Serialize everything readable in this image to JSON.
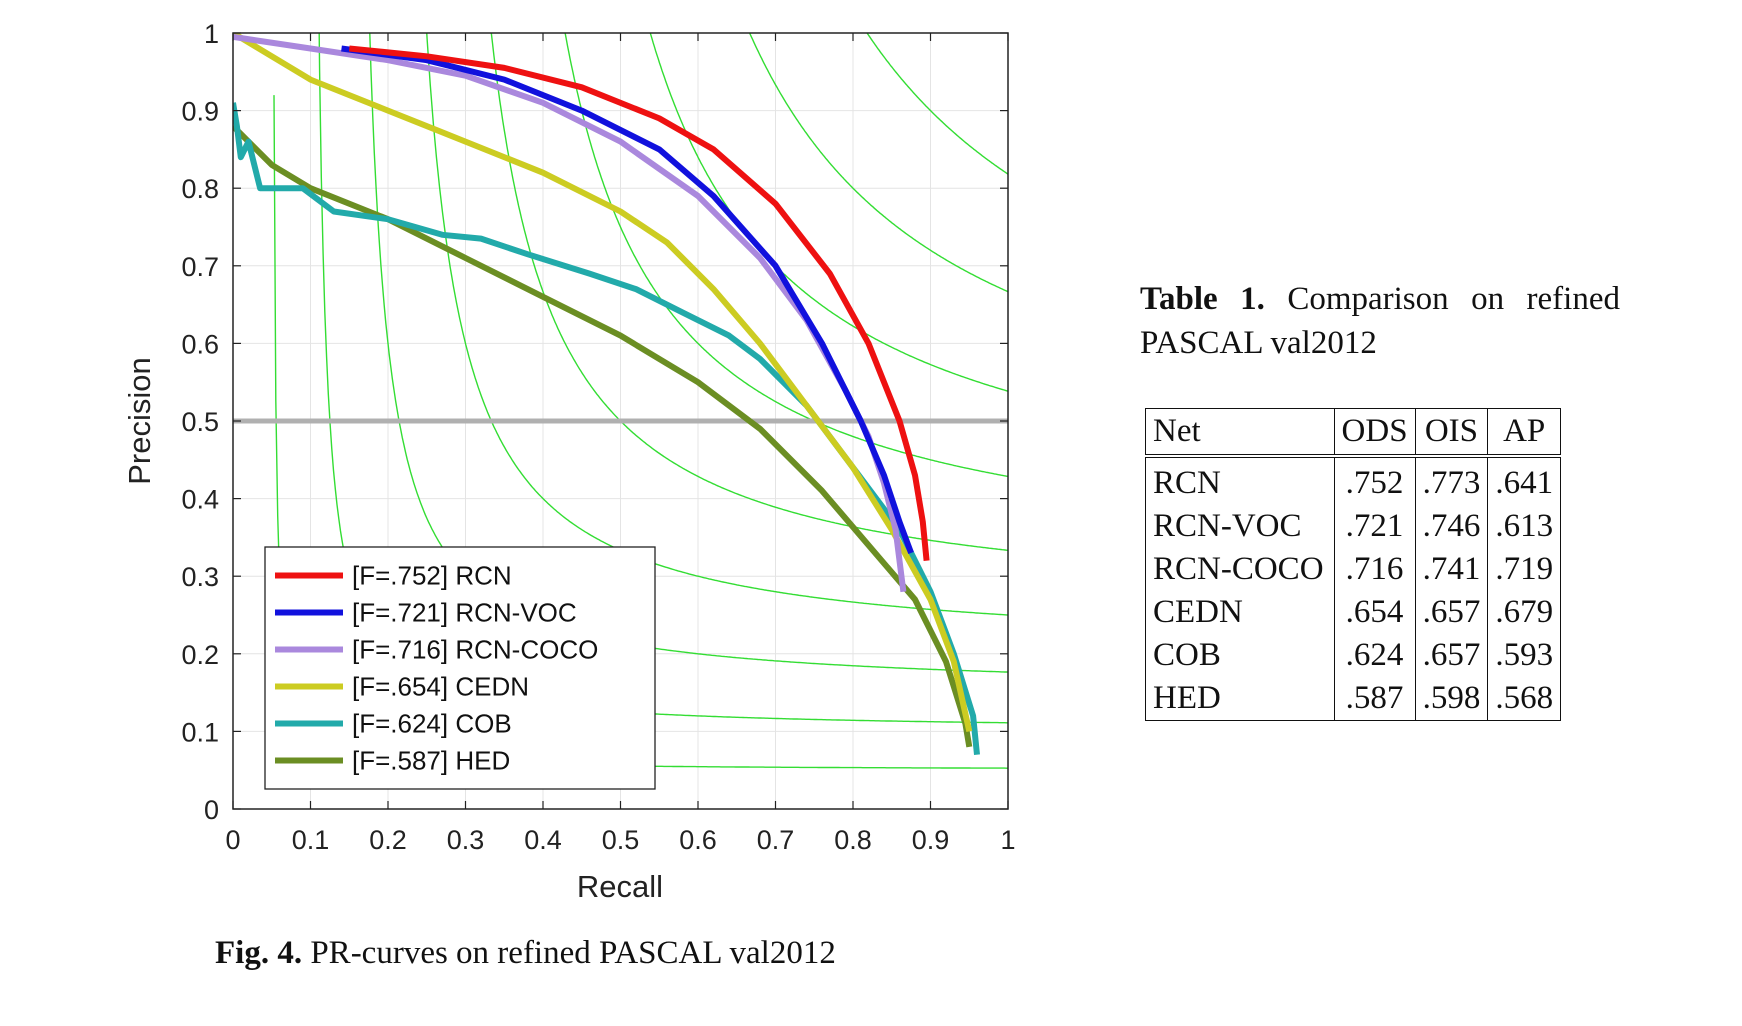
{
  "chart_data": {
    "type": "line",
    "title": "",
    "xlabel": "Recall",
    "ylabel": "Precision",
    "xlim": [
      0,
      1
    ],
    "ylim": [
      0,
      1
    ],
    "grid": true,
    "legend_position": "bottom-left",
    "x_ticks": [
      "0",
      "0.1",
      "0.2",
      "0.3",
      "0.4",
      "0.5",
      "0.6",
      "0.7",
      "0.8",
      "0.9",
      "1"
    ],
    "y_ticks": [
      "0",
      "0.1",
      "0.2",
      "0.3",
      "0.4",
      "0.5",
      "0.6",
      "0.7",
      "0.8",
      "0.9",
      "1"
    ],
    "reference_line": {
      "y": 0.5,
      "color": "#b0b0b0"
    },
    "iso_f_values": [
      0.1,
      0.2,
      0.3,
      0.4,
      0.5,
      0.6,
      0.7,
      0.8,
      0.9
    ],
    "iso_f_color": "#33dd33",
    "series": [
      {
        "name": "[F=.752] RCN",
        "color": "#ee1111",
        "x": [
          0.15,
          0.25,
          0.35,
          0.45,
          0.55,
          0.62,
          0.7,
          0.77,
          0.82,
          0.86,
          0.88,
          0.89,
          0.895
        ],
        "y": [
          0.98,
          0.97,
          0.955,
          0.93,
          0.89,
          0.85,
          0.78,
          0.69,
          0.6,
          0.5,
          0.43,
          0.37,
          0.32
        ]
      },
      {
        "name": "[F=.721] RCN-VOC",
        "color": "#1111dd",
        "x": [
          0.14,
          0.25,
          0.35,
          0.45,
          0.55,
          0.62,
          0.7,
          0.76,
          0.81,
          0.84,
          0.86,
          0.875
        ],
        "y": [
          0.98,
          0.965,
          0.94,
          0.9,
          0.85,
          0.79,
          0.7,
          0.6,
          0.5,
          0.43,
          0.37,
          0.33
        ]
      },
      {
        "name": "[F=.716] RCN-COCO",
        "color": "#aa88dd",
        "x": [
          0.0,
          0.1,
          0.2,
          0.3,
          0.4,
          0.5,
          0.6,
          0.68,
          0.74,
          0.79,
          0.82,
          0.84,
          0.855,
          0.865
        ],
        "y": [
          0.995,
          0.98,
          0.965,
          0.945,
          0.91,
          0.86,
          0.79,
          0.71,
          0.63,
          0.54,
          0.48,
          0.42,
          0.36,
          0.28
        ]
      },
      {
        "name": "[F=.654] CEDN",
        "color": "#cccc22",
        "x": [
          0.0,
          0.1,
          0.2,
          0.3,
          0.4,
          0.5,
          0.56,
          0.62,
          0.68,
          0.74,
          0.8,
          0.85,
          0.9,
          0.93,
          0.95
        ],
        "y": [
          1.0,
          0.94,
          0.9,
          0.86,
          0.82,
          0.77,
          0.73,
          0.67,
          0.6,
          0.52,
          0.44,
          0.36,
          0.27,
          0.19,
          0.1
        ]
      },
      {
        "name": "[F=.624] COB",
        "color": "#22aaaa",
        "x": [
          0.0,
          0.005,
          0.01,
          0.02,
          0.035,
          0.06,
          0.09,
          0.13,
          0.2,
          0.27,
          0.32,
          0.38,
          0.46,
          0.52,
          0.58,
          0.64,
          0.68,
          0.74,
          0.8,
          0.86,
          0.9,
          0.93,
          0.955,
          0.96
        ],
        "y": [
          0.91,
          0.88,
          0.84,
          0.86,
          0.8,
          0.8,
          0.8,
          0.77,
          0.76,
          0.74,
          0.735,
          0.715,
          0.69,
          0.67,
          0.64,
          0.61,
          0.58,
          0.52,
          0.44,
          0.36,
          0.28,
          0.2,
          0.12,
          0.07
        ]
      },
      {
        "name": "[F=.587] HED",
        "color": "#6b8e23",
        "x": [
          0.0,
          0.02,
          0.05,
          0.1,
          0.2,
          0.3,
          0.4,
          0.5,
          0.6,
          0.68,
          0.76,
          0.82,
          0.88,
          0.92,
          0.945,
          0.95
        ],
        "y": [
          0.88,
          0.86,
          0.83,
          0.8,
          0.76,
          0.71,
          0.66,
          0.61,
          0.55,
          0.49,
          0.41,
          0.34,
          0.27,
          0.19,
          0.11,
          0.08
        ]
      }
    ]
  },
  "figure_caption": {
    "label": "Fig. 4.",
    "text": "PR-curves on refined PASCAL val2012"
  },
  "table": {
    "caption_label": "Table 1.",
    "caption_text": "Comparison on refined PASCAL val2012",
    "headers": [
      "Net",
      "ODS",
      "OIS",
      "AP"
    ],
    "rows": [
      {
        "net": "RCN",
        "ods": ".752",
        "ois": ".773",
        "ap": ".641"
      },
      {
        "net": "RCN-VOC",
        "ods": ".721",
        "ois": ".746",
        "ap": ".613"
      },
      {
        "net": "RCN-COCO",
        "ods": ".716",
        "ois": ".741",
        "ap": ".719"
      },
      {
        "net": "CEDN",
        "ods": ".654",
        "ois": ".657",
        "ap": ".679"
      },
      {
        "net": "COB",
        "ods": ".624",
        "ois": ".657",
        "ap": ".593"
      },
      {
        "net": "HED",
        "ods": ".587",
        "ois": ".598",
        "ap": ".568"
      }
    ]
  }
}
